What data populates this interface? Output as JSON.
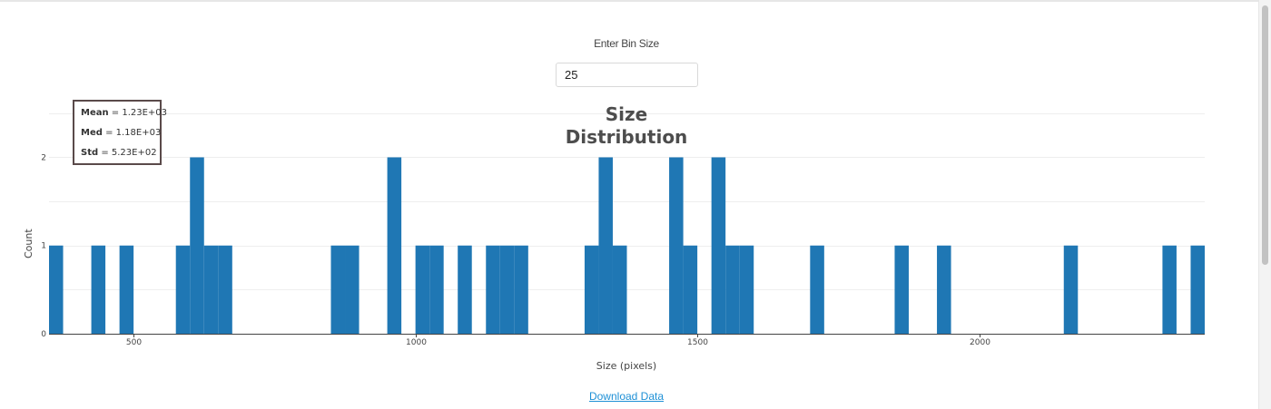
{
  "bin_size": {
    "label": "Enter Bin Size",
    "value": "25"
  },
  "stats": {
    "mean_label": "Mean",
    "mean_value": " = 1.23E+03",
    "median_label": "Med",
    "median_value": " = 1.18E+03",
    "std_label": "Std",
    "std_value": " = 5.23E+02"
  },
  "download_link": "Download Data",
  "colors": {
    "bar": "#1f77b4",
    "grid": "#eeeeee"
  },
  "chart_data": {
    "type": "bar",
    "title_line1": "Size",
    "title_line2": "Distribution",
    "xlabel": "Size (pixels)",
    "ylabel": "Count",
    "xlim": [
      350,
      2400
    ],
    "ylim": [
      0,
      2.55
    ],
    "x_ticks": [
      500,
      1000,
      1500,
      2000
    ],
    "y_ticks": [
      0,
      1,
      2
    ],
    "bin_width": 25,
    "grid": true,
    "bins": [
      {
        "x0": 350,
        "count": 1
      },
      {
        "x0": 425,
        "count": 1
      },
      {
        "x0": 475,
        "count": 1
      },
      {
        "x0": 575,
        "count": 1
      },
      {
        "x0": 600,
        "count": 2
      },
      {
        "x0": 625,
        "count": 1
      },
      {
        "x0": 650,
        "count": 1
      },
      {
        "x0": 850,
        "count": 1
      },
      {
        "x0": 875,
        "count": 1
      },
      {
        "x0": 950,
        "count": 2
      },
      {
        "x0": 1000,
        "count": 1
      },
      {
        "x0": 1025,
        "count": 1
      },
      {
        "x0": 1075,
        "count": 1
      },
      {
        "x0": 1125,
        "count": 1
      },
      {
        "x0": 1150,
        "count": 1
      },
      {
        "x0": 1175,
        "count": 1
      },
      {
        "x0": 1300,
        "count": 1
      },
      {
        "x0": 1325,
        "count": 2
      },
      {
        "x0": 1350,
        "count": 1
      },
      {
        "x0": 1450,
        "count": 2
      },
      {
        "x0": 1475,
        "count": 1
      },
      {
        "x0": 1525,
        "count": 2
      },
      {
        "x0": 1550,
        "count": 1
      },
      {
        "x0": 1575,
        "count": 1
      },
      {
        "x0": 1700,
        "count": 1
      },
      {
        "x0": 1850,
        "count": 1
      },
      {
        "x0": 1925,
        "count": 1
      },
      {
        "x0": 2150,
        "count": 1
      },
      {
        "x0": 2325,
        "count": 1
      },
      {
        "x0": 2375,
        "count": 1
      }
    ]
  }
}
